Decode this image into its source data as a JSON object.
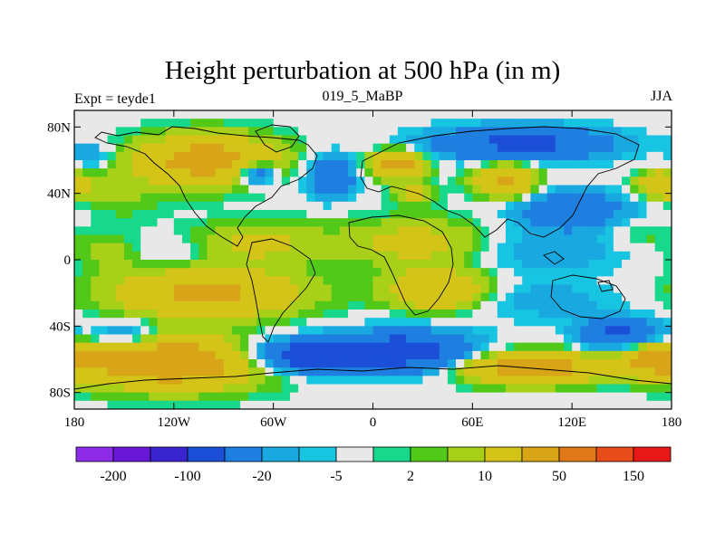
{
  "title": "Height perturbation at 500 hPa (in m)",
  "left_label": "Expt = teyde1",
  "center_label": "019_5_MaBP",
  "right_label": "JJA",
  "chart_data": {
    "type": "heatmap",
    "title": "Height perturbation at 500 hPa (in m)",
    "xlim": [
      -180,
      180
    ],
    "ylim": [
      -90,
      90
    ],
    "x_ticks": [
      {
        "value": -180,
        "label": "180"
      },
      {
        "value": -120,
        "label": "120W"
      },
      {
        "value": -60,
        "label": "60W"
      },
      {
        "value": 0,
        "label": "0"
      },
      {
        "value": 60,
        "label": "60E"
      },
      {
        "value": 120,
        "label": "120E"
      },
      {
        "value": 180,
        "label": "180"
      }
    ],
    "y_ticks": [
      {
        "value": 80,
        "label": "80N"
      },
      {
        "value": 40,
        "label": "40N"
      },
      {
        "value": 0,
        "label": "0"
      },
      {
        "value": -40,
        "label": "40S"
      },
      {
        "value": -80,
        "label": "80S"
      }
    ],
    "colorbar": {
      "colors": [
        "#8c2be8",
        "#6a18d8",
        "#3a24d0",
        "#1c4fd8",
        "#1e7fe0",
        "#19a8e0",
        "#17c4e2",
        "#e8e8e8",
        "#18d88c",
        "#52c818",
        "#a8d018",
        "#d4c418",
        "#d8a418",
        "#e07a18",
        "#e84c18",
        "#e81818"
      ],
      "labels": [
        {
          "boundary": 1,
          "text": "-200"
        },
        {
          "boundary": 3,
          "text": "-100"
        },
        {
          "boundary": 5,
          "text": "-20"
        },
        {
          "boundary": 7,
          "text": "-5"
        },
        {
          "boundary": 9,
          "text": "2"
        },
        {
          "boundary": 11,
          "text": "10"
        },
        {
          "boundary": 13,
          "text": "50"
        },
        {
          "boundary": 15,
          "text": "150"
        }
      ]
    },
    "field_features": [
      {
        "lon": -120,
        "lat": -62,
        "value": 90,
        "slon": 55,
        "slat": 14
      },
      {
        "lon": -150,
        "lat": -45,
        "value": -30,
        "slon": 18,
        "slat": 8
      },
      {
        "lon": -40,
        "lat": -58,
        "value": -80,
        "slon": 40,
        "slat": 10
      },
      {
        "lon": 20,
        "lat": -55,
        "value": -70,
        "slon": 40,
        "slat": 12
      },
      {
        "lon": 95,
        "lat": -65,
        "value": 80,
        "slon": 40,
        "slat": 9
      },
      {
        "lon": 150,
        "lat": -45,
        "value": -60,
        "slon": 25,
        "slat": 9
      },
      {
        "lon": 170,
        "lat": -60,
        "value": 60,
        "slon": 20,
        "slat": 10
      },
      {
        "lon": -100,
        "lat": -20,
        "value": 60,
        "slon": 55,
        "slat": 14
      },
      {
        "lon": 40,
        "lat": -18,
        "value": 50,
        "slon": 30,
        "slat": 12
      },
      {
        "lon": 100,
        "lat": -25,
        "value": -15,
        "slon": 50,
        "slat": 12
      },
      {
        "lon": 100,
        "lat": 5,
        "value": -18,
        "slon": 55,
        "slat": 14
      },
      {
        "lon": 30,
        "lat": 10,
        "value": 30,
        "slon": 45,
        "slat": 14
      },
      {
        "lon": -70,
        "lat": 10,
        "value": 25,
        "slon": 40,
        "slat": 12
      },
      {
        "lon": -120,
        "lat": 5,
        "value": -10,
        "slon": 25,
        "slat": 10
      },
      {
        "lon": -160,
        "lat": 5,
        "value": 15,
        "slon": 20,
        "slat": 10
      },
      {
        "lon": -100,
        "lat": 60,
        "value": 70,
        "slon": 40,
        "slat": 14
      },
      {
        "lon": -70,
        "lat": 52,
        "value": -50,
        "slon": 12,
        "slat": 7
      },
      {
        "lon": -25,
        "lat": 50,
        "value": -50,
        "slon": 14,
        "slat": 12
      },
      {
        "lon": 15,
        "lat": 58,
        "value": 70,
        "slon": 16,
        "slat": 8
      },
      {
        "lon": 25,
        "lat": 40,
        "value": 30,
        "slon": 12,
        "slat": 6
      },
      {
        "lon": 90,
        "lat": 70,
        "value": -60,
        "slon": 55,
        "slat": 10
      },
      {
        "lon": 80,
        "lat": 48,
        "value": 60,
        "slon": 18,
        "slat": 10
      },
      {
        "lon": 120,
        "lat": 30,
        "value": -40,
        "slon": 35,
        "slat": 12
      },
      {
        "lon": 175,
        "lat": 45,
        "value": 50,
        "slon": 15,
        "slat": 8
      },
      {
        "lon": -150,
        "lat": 40,
        "value": 10,
        "slon": 25,
        "slat": 15
      },
      {
        "lon": -170,
        "lat": 62,
        "value": -20,
        "slon": 12,
        "slat": 8
      },
      {
        "lon": 160,
        "lat": 15,
        "value": 10,
        "slon": 20,
        "slat": 10
      }
    ]
  }
}
